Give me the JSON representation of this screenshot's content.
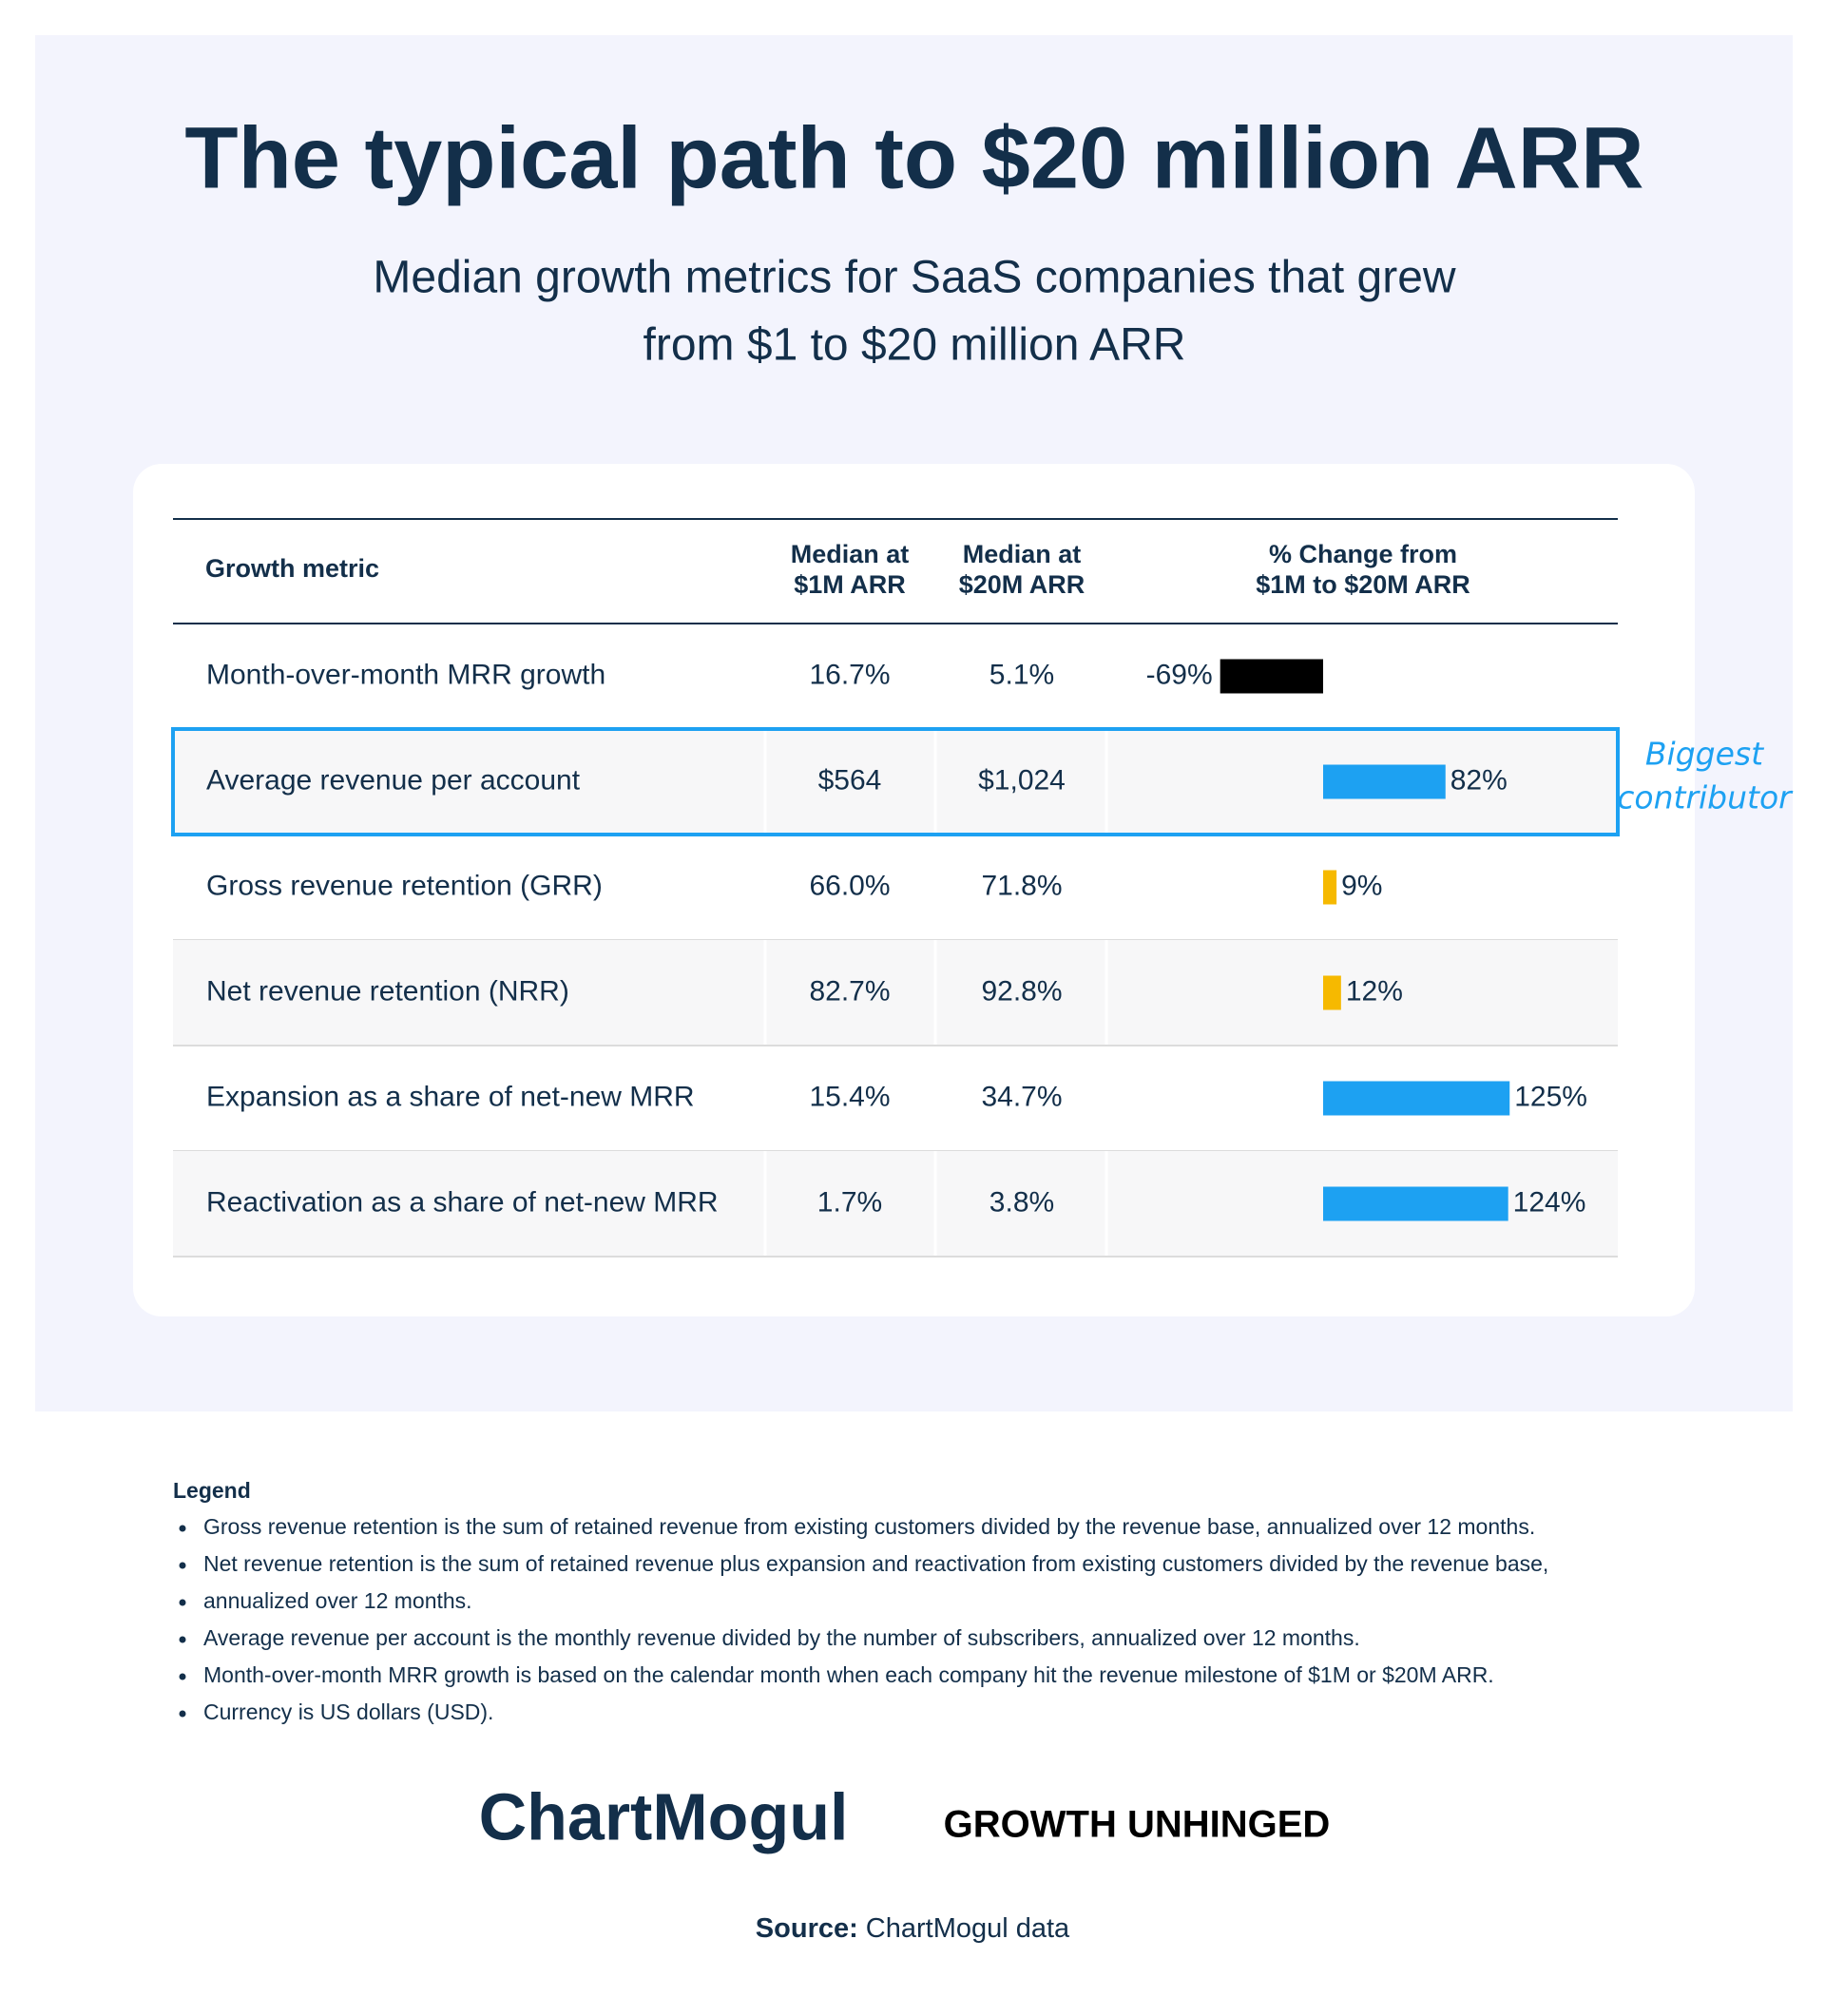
{
  "header": {
    "title": "The typical path to $20 million ARR",
    "subtitle": [
      "Median growth metrics for SaaS companies that grew",
      "from $1 to $20 million ARR"
    ]
  },
  "table": {
    "columns": [
      [
        "Growth metric"
      ],
      [
        "Median at",
        "$1M ARR"
      ],
      [
        "Median at",
        "$20M ARR"
      ],
      [
        "% Change from",
        "$1M to $20M ARR"
      ]
    ],
    "rows": [
      {
        "metric": "Month-over-month MRR growth",
        "at_1m": "16.7%",
        "at_20m": "5.1%",
        "change": -69,
        "change_label": "-69%",
        "color": "#000000"
      },
      {
        "metric": "Average revenue per account",
        "at_1m": "$564",
        "at_20m": "$1,024",
        "change": 82,
        "change_label": "82%",
        "color": "#1da1f2"
      },
      {
        "metric": "Gross revenue retention (GRR)",
        "at_1m": "66.0%",
        "at_20m": "71.8%",
        "change": 9,
        "change_label": "9%",
        "color": "#f6b900"
      },
      {
        "metric": "Net revenue retention (NRR)",
        "at_1m": "82.7%",
        "at_20m": "92.8%",
        "change": 12,
        "change_label": "12%",
        "color": "#f6b900"
      },
      {
        "metric": "Expansion as a share of net-new MRR",
        "at_1m": "15.4%",
        "at_20m": "34.7%",
        "change": 125,
        "change_label": "125%",
        "color": "#1da1f2"
      },
      {
        "metric": "Reactivation as a share of net-new MRR",
        "at_1m": "1.7%",
        "at_20m": "3.8%",
        "change": 124,
        "change_label": "124%",
        "color": "#1da1f2"
      }
    ],
    "highlight_row": 1,
    "annotation": [
      "Biggest",
      "contributor"
    ]
  },
  "legend": {
    "title": "Legend",
    "items": [
      "Gross revenue retention is the sum of retained revenue from existing customers divided by the revenue base, annualized over 12 months.",
      "Net revenue retention is the sum of retained revenue plus expansion and reactivation from existing customers divided by the revenue base,",
      "annualized over 12 months.",
      "Average revenue per account is the monthly revenue divided by the number of subscribers, annualized over 12 months.",
      "Month-over-month MRR growth is based on the calendar month when each company hit the revenue milestone of $1M or $20M ARR.",
      "Currency is US dollars (USD)."
    ]
  },
  "footer": {
    "logo_1": "ChartMogul",
    "logo_2": "GROWTH UNHINGED",
    "source_label": "Source:",
    "source": "ChartMogul data"
  }
}
